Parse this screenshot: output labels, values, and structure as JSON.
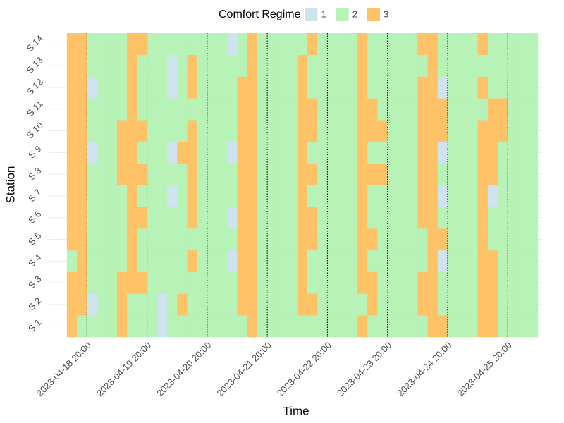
{
  "chart_data": {
    "type": "heatmap",
    "xlabel": "Time",
    "ylabel": "Station",
    "x": [
      "2023-04-18 12:00",
      "2023-04-18 16:00",
      "2023-04-18 20:00",
      "2023-04-19 00:00",
      "2023-04-19 04:00",
      "2023-04-19 08:00",
      "2023-04-19 12:00",
      "2023-04-19 16:00",
      "2023-04-19 20:00",
      "2023-04-20 00:00",
      "2023-04-20 04:00",
      "2023-04-20 08:00",
      "2023-04-20 12:00",
      "2023-04-20 16:00",
      "2023-04-20 20:00",
      "2023-04-21 00:00",
      "2023-04-21 04:00",
      "2023-04-21 08:00",
      "2023-04-21 12:00",
      "2023-04-21 16:00",
      "2023-04-21 20:00",
      "2023-04-22 00:00",
      "2023-04-22 04:00",
      "2023-04-22 08:00",
      "2023-04-22 12:00",
      "2023-04-22 16:00",
      "2023-04-22 20:00",
      "2023-04-23 00:00",
      "2023-04-23 04:00",
      "2023-04-23 08:00",
      "2023-04-23 12:00",
      "2023-04-23 16:00",
      "2023-04-23 20:00",
      "2023-04-24 00:00",
      "2023-04-24 04:00",
      "2023-04-24 08:00",
      "2023-04-24 12:00",
      "2023-04-24 16:00",
      "2023-04-24 20:00",
      "2023-04-25 00:00",
      "2023-04-25 04:00",
      "2023-04-25 08:00",
      "2023-04-25 12:00",
      "2023-04-25 16:00",
      "2023-04-25 20:00",
      "2023-04-26 00:00",
      "2023-04-26 04:00"
    ],
    "xlim": [
      "2023-04-18 05:00",
      "2023-04-26 10:00"
    ],
    "xticks": [
      "2023-04-18 20:00",
      "2023-04-19 20:00",
      "2023-04-20 20:00",
      "2023-04-21 20:00",
      "2023-04-22 20:00",
      "2023-04-23 20:00",
      "2023-04-24 20:00",
      "2023-04-25 20:00"
    ],
    "legend": {
      "title": "Comfort Regime",
      "levels": [
        1,
        2,
        3
      ],
      "colors": [
        "#cde4ee",
        "#b7f2b7",
        "#ffc266"
      ]
    },
    "series": [
      {
        "name": "S 1",
        "values": [
          3,
          2,
          2,
          2,
          2,
          3,
          2,
          2,
          2,
          1,
          2,
          2,
          2,
          2,
          2,
          2,
          2,
          2,
          3,
          2,
          2,
          2,
          2,
          2,
          2,
          2,
          2,
          2,
          2,
          3,
          2,
          2,
          2,
          2,
          2,
          2,
          3,
          3,
          2,
          2,
          2,
          3,
          3,
          2,
          2,
          2,
          2
        ]
      },
      {
        "name": "S 2",
        "values": [
          3,
          3,
          1,
          2,
          2,
          3,
          2,
          2,
          2,
          1,
          2,
          3,
          2,
          2,
          2,
          2,
          2,
          3,
          3,
          2,
          2,
          2,
          2,
          3,
          3,
          2,
          2,
          2,
          2,
          2,
          3,
          2,
          2,
          2,
          2,
          3,
          3,
          2,
          2,
          2,
          2,
          3,
          3,
          2,
          2,
          2,
          2
        ]
      },
      {
        "name": "S 3",
        "values": [
          3,
          3,
          2,
          2,
          2,
          3,
          3,
          3,
          2,
          2,
          2,
          2,
          2,
          2,
          2,
          2,
          2,
          3,
          3,
          2,
          2,
          2,
          2,
          3,
          2,
          2,
          2,
          2,
          2,
          3,
          3,
          2,
          2,
          2,
          2,
          3,
          3,
          2,
          2,
          2,
          2,
          3,
          3,
          2,
          2,
          2,
          2
        ]
      },
      {
        "name": "S 4",
        "values": [
          2,
          3,
          2,
          2,
          2,
          2,
          3,
          2,
          2,
          2,
          2,
          2,
          3,
          2,
          2,
          2,
          1,
          3,
          3,
          2,
          2,
          2,
          2,
          3,
          2,
          2,
          2,
          2,
          2,
          3,
          2,
          2,
          2,
          2,
          2,
          2,
          3,
          1,
          2,
          2,
          2,
          3,
          3,
          2,
          2,
          2,
          2
        ]
      },
      {
        "name": "S 5",
        "values": [
          3,
          3,
          2,
          2,
          2,
          2,
          3,
          2,
          2,
          2,
          2,
          2,
          2,
          2,
          2,
          2,
          2,
          3,
          3,
          2,
          2,
          2,
          2,
          3,
          3,
          2,
          2,
          2,
          2,
          3,
          3,
          2,
          2,
          2,
          2,
          2,
          3,
          3,
          2,
          2,
          2,
          3,
          2,
          2,
          2,
          2,
          2
        ]
      },
      {
        "name": "S 6",
        "values": [
          3,
          3,
          2,
          2,
          2,
          2,
          3,
          3,
          2,
          2,
          2,
          2,
          3,
          2,
          2,
          2,
          1,
          3,
          3,
          2,
          2,
          2,
          2,
          3,
          3,
          2,
          2,
          2,
          2,
          3,
          2,
          2,
          2,
          2,
          2,
          3,
          3,
          2,
          2,
          2,
          2,
          3,
          2,
          2,
          2,
          2,
          2
        ]
      },
      {
        "name": "S 7",
        "values": [
          3,
          3,
          2,
          2,
          2,
          2,
          3,
          2,
          2,
          2,
          1,
          2,
          3,
          2,
          2,
          2,
          2,
          3,
          3,
          2,
          2,
          2,
          2,
          3,
          2,
          2,
          2,
          2,
          2,
          3,
          2,
          2,
          2,
          2,
          2,
          3,
          3,
          1,
          2,
          2,
          2,
          3,
          1,
          2,
          2,
          2,
          2
        ]
      },
      {
        "name": "S 8",
        "values": [
          3,
          3,
          2,
          2,
          2,
          3,
          3,
          3,
          2,
          2,
          2,
          2,
          3,
          2,
          2,
          2,
          2,
          3,
          3,
          2,
          2,
          2,
          2,
          3,
          3,
          2,
          2,
          2,
          2,
          3,
          3,
          3,
          2,
          2,
          2,
          3,
          3,
          2,
          2,
          2,
          2,
          3,
          3,
          2,
          2,
          2,
          2
        ]
      },
      {
        "name": "S 9",
        "values": [
          3,
          3,
          1,
          2,
          2,
          3,
          3,
          2,
          2,
          2,
          1,
          3,
          3,
          2,
          2,
          2,
          1,
          3,
          3,
          2,
          2,
          2,
          2,
          3,
          2,
          2,
          2,
          2,
          2,
          3,
          2,
          2,
          2,
          2,
          2,
          3,
          3,
          1,
          2,
          2,
          2,
          3,
          3,
          2,
          2,
          2,
          2
        ]
      },
      {
        "name": "S 10",
        "values": [
          3,
          3,
          2,
          2,
          2,
          3,
          3,
          3,
          2,
          2,
          2,
          2,
          3,
          2,
          2,
          2,
          2,
          3,
          3,
          2,
          2,
          2,
          2,
          3,
          3,
          2,
          2,
          2,
          2,
          3,
          3,
          3,
          2,
          2,
          2,
          3,
          3,
          3,
          2,
          2,
          2,
          3,
          3,
          3,
          2,
          2,
          2
        ]
      },
      {
        "name": "S 11",
        "values": [
          3,
          3,
          2,
          2,
          2,
          2,
          3,
          2,
          2,
          2,
          2,
          2,
          2,
          2,
          2,
          2,
          2,
          3,
          3,
          2,
          2,
          2,
          2,
          3,
          3,
          2,
          2,
          2,
          2,
          3,
          3,
          2,
          2,
          2,
          2,
          3,
          3,
          3,
          2,
          2,
          2,
          2,
          3,
          3,
          2,
          2,
          2
        ]
      },
      {
        "name": "S 12",
        "values": [
          3,
          3,
          1,
          2,
          2,
          2,
          3,
          2,
          2,
          2,
          1,
          2,
          3,
          2,
          2,
          2,
          2,
          3,
          3,
          2,
          2,
          2,
          2,
          3,
          2,
          2,
          2,
          2,
          2,
          3,
          2,
          2,
          2,
          2,
          2,
          3,
          3,
          1,
          2,
          2,
          2,
          3,
          2,
          2,
          2,
          2,
          2
        ]
      },
      {
        "name": "S 13",
        "values": [
          3,
          3,
          2,
          2,
          2,
          2,
          3,
          2,
          2,
          2,
          1,
          2,
          3,
          2,
          2,
          2,
          2,
          2,
          3,
          2,
          2,
          2,
          2,
          3,
          2,
          2,
          2,
          2,
          2,
          3,
          2,
          2,
          2,
          2,
          2,
          2,
          3,
          2,
          2,
          2,
          2,
          2,
          2,
          2,
          2,
          2,
          2
        ]
      },
      {
        "name": "S 14",
        "values": [
          3,
          3,
          2,
          2,
          2,
          2,
          3,
          3,
          2,
          2,
          2,
          2,
          2,
          2,
          2,
          2,
          1,
          2,
          3,
          2,
          2,
          2,
          2,
          2,
          3,
          2,
          2,
          2,
          2,
          3,
          2,
          2,
          2,
          2,
          2,
          3,
          3,
          2,
          2,
          2,
          2,
          3,
          2,
          2,
          2,
          2,
          2
        ]
      }
    ]
  }
}
